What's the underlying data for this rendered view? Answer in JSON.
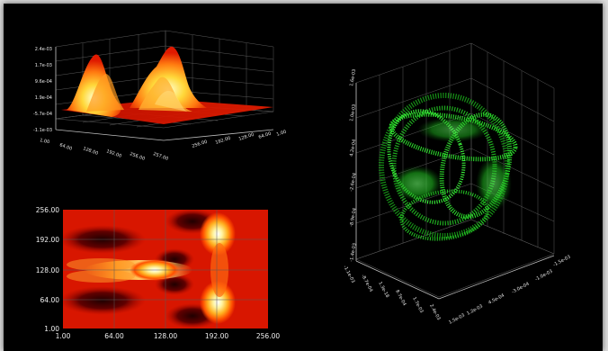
{
  "colors": {
    "background": "#000000",
    "surface_low": "#d01000",
    "surface_high": "#ffffff",
    "points": "#29d629",
    "axis": "#bdbdbd"
  },
  "surface3d": {
    "z_ticks": [
      "2.4e-03",
      "1.7e-03",
      "9.6e-04",
      "1.9e-04",
      "-5.7e-04",
      "-1.1e-03"
    ],
    "x_ticks": [
      "1.00",
      "64.00",
      "128.00",
      "192.00",
      "256.00",
      "257.00"
    ],
    "y_ticks": [
      "256.00",
      "192.00",
      "128.00",
      "64.00",
      "1.00"
    ]
  },
  "heatmap": {
    "y_ticks": [
      "256.00",
      "192.00",
      "128.00",
      "64.00",
      "1.00"
    ],
    "x_ticks": [
      "1.00",
      "64.00",
      "128.00",
      "192.00",
      "256.00"
    ]
  },
  "scatter3d": {
    "z_ticks": [
      "1.6e-03",
      "1.0e-03",
      "4.2e-04",
      "-2.6e-04",
      "-8.9e-04",
      "-1.4e-03"
    ],
    "x_ticks": [
      "-1.1e-03",
      "-8.7e-04",
      "1.3e-18",
      "8.7e-04",
      "1.7e-03",
      "2.4e-03"
    ],
    "y_ticks": [
      "-1.5e-03",
      "-1.0e-03",
      "-3.0e-04",
      "4.5e-04",
      "1.2e-03",
      "1.5e-03"
    ]
  }
}
